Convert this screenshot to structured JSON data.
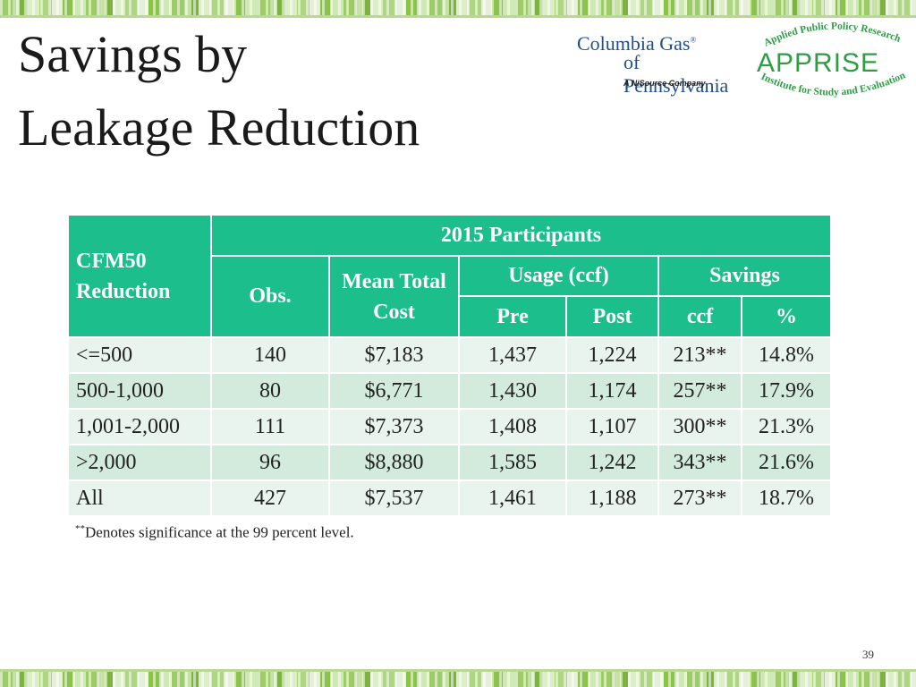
{
  "slide": {
    "title_line1": "Savings by",
    "title_line2": "Leakage Reduction",
    "page_number": "39",
    "footnote_mark": "**",
    "footnote_text": "Denotes significance at the 99 percent level."
  },
  "logos": {
    "columbia_line1": "Columbia Gas",
    "columbia_line2": "of Pennsylvania",
    "columbia_tagline": "A NiSource Company",
    "apprise_top": "Applied Public Policy Research",
    "apprise_word": "APPRISE",
    "apprise_bottom": "Institute for Study and Evaluation",
    "columbia_color": "#1f4e8c",
    "apprise_color": "#2e9e45"
  },
  "table": {
    "header_color": "#1cbf8b",
    "row_label_header": "CFM50 Reduction",
    "group_header": "2015 Participants",
    "obs_header": "Obs.",
    "mean_cost_header": "Mean Total Cost",
    "usage_header": "Usage (ccf)",
    "savings_header": "Savings",
    "pre_header": "Pre",
    "post_header": "Post",
    "ccf_header": "ccf",
    "pct_header": "%",
    "rows": [
      {
        "label": "<=500",
        "obs": "140",
        "cost": "$7,183",
        "pre": "1,437",
        "post": "1,224",
        "ccf": "213**",
        "pct": "14.8%"
      },
      {
        "label": "500-1,000",
        "obs": "80",
        "cost": "$6,771",
        "pre": "1,430",
        "post": "1,174",
        "ccf": "257**",
        "pct": "17.9%"
      },
      {
        "label": "1,001-2,000",
        "obs": "111",
        "cost": "$7,373",
        "pre": "1,408",
        "post": "1,107",
        "ccf": "300**",
        "pct": "21.3%"
      },
      {
        "label": ">2,000",
        "obs": "96",
        "cost": "$8,880",
        "pre": "1,585",
        "post": "1,242",
        "ccf": "343**",
        "pct": "21.6%"
      },
      {
        "label": "All",
        "obs": "427",
        "cost": "$7,537",
        "pre": "1,461",
        "post": "1,188",
        "ccf": "273**",
        "pct": "18.7%"
      }
    ]
  }
}
